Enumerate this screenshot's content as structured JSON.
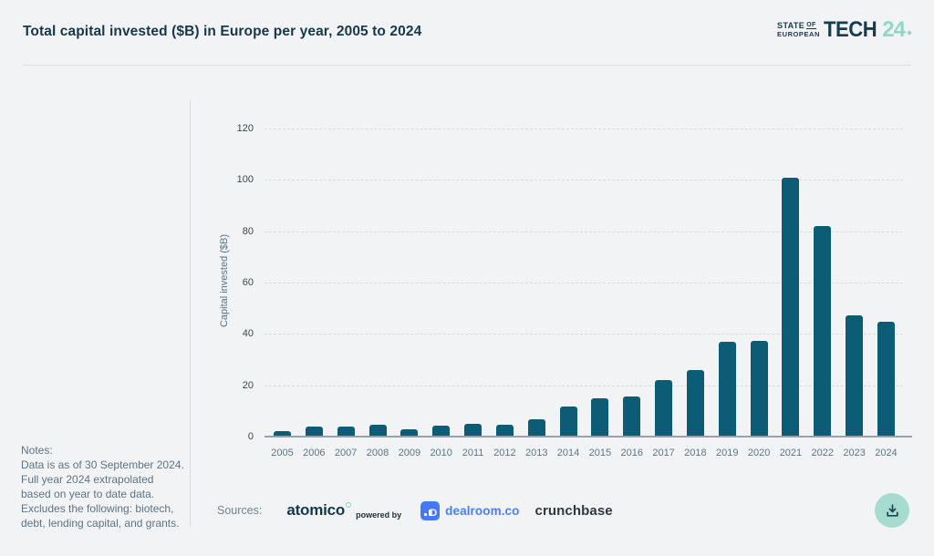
{
  "header": {
    "title": "Total capital invested ($B) in Europe per year, 2005 to 2024",
    "logo": {
      "state": "STATE",
      "of": "OF",
      "european": "EUROPEAN",
      "tech": "TECH",
      "year": "24"
    }
  },
  "notes": {
    "label": "Notes:",
    "body": "Data is as of 30 September 2024. Full year 2024 extrapolated based on year to date data. Excludes the following: biotech, debt, lending capital, and grants."
  },
  "sources": {
    "label": "Sources:",
    "atomico": "atomico",
    "powered_by": "powered by",
    "dealroom": "dealroom.co",
    "crunchbase": "crunchbase"
  },
  "download": {
    "icon": "download-icon"
  },
  "colors": {
    "bar": "#0b5c74",
    "title_text": "#17384a",
    "accent_mint": "#92d6c6",
    "dealroom_blue": "#4a7ef7",
    "background": "#f1f3f4"
  },
  "chart_data": {
    "type": "bar",
    "title": "Total capital invested ($B) in Europe per year, 2005 to 2024",
    "categories": [
      "2005",
      "2006",
      "2007",
      "2008",
      "2009",
      "2010",
      "2011",
      "2012",
      "2013",
      "2014",
      "2015",
      "2016",
      "2017",
      "2018",
      "2019",
      "2020",
      "2021",
      "2022",
      "2023",
      "2024"
    ],
    "values": [
      1.8,
      3.6,
      3.4,
      4.2,
      2.4,
      3.8,
      4.6,
      4.4,
      6.5,
      11.2,
      14.4,
      15.4,
      21.5,
      25.5,
      36.5,
      37,
      100.5,
      81.5,
      47,
      44.5
    ],
    "xlabel": "",
    "ylabel": "Capital invested ($B)",
    "ylim": [
      0,
      120
    ],
    "yticks": [
      0,
      20,
      40,
      60,
      80,
      100,
      120
    ],
    "grid": "horizontal-dashed",
    "legend": "none",
    "bar_color": "#0b5c74"
  }
}
